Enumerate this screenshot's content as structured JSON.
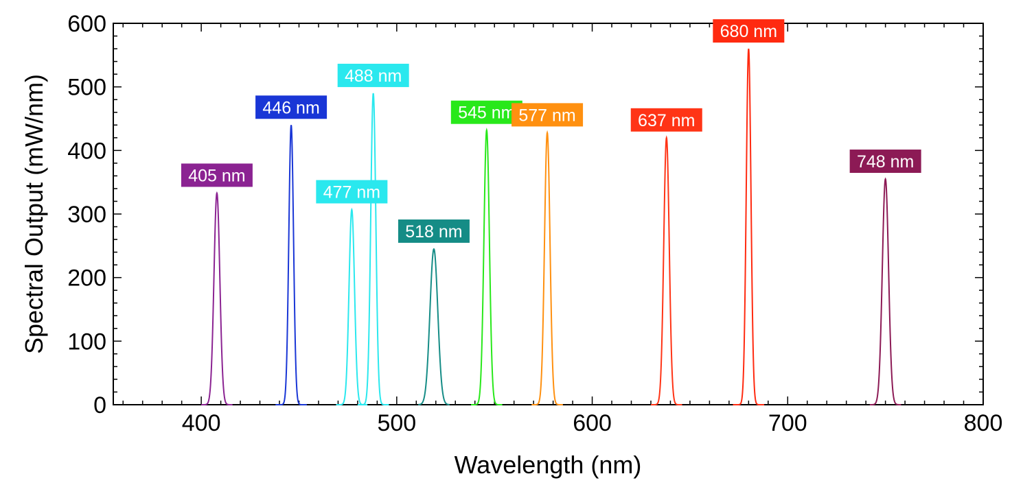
{
  "chart_data": {
    "type": "line",
    "title": "",
    "xlabel": "Wavelength (nm)",
    "ylabel": "Spectral Output (mW/nm)",
    "xlim": [
      355,
      800
    ],
    "ylim": [
      0,
      600
    ],
    "xticks": [
      400,
      500,
      600,
      700,
      800
    ],
    "yticks": [
      0,
      100,
      200,
      300,
      400,
      500,
      600
    ],
    "grid": false,
    "series": [
      {
        "label": "405 nm",
        "peak_x": 408,
        "peak_y": 333,
        "width": 1.5,
        "color": "#8b2392"
      },
      {
        "label": "446 nm",
        "peak_x": 446,
        "peak_y": 440,
        "width": 1.2,
        "color": "#1936d6"
      },
      {
        "label": "477 nm",
        "peak_x": 477,
        "peak_y": 307,
        "width": 1.4,
        "color": "#2ae8ee"
      },
      {
        "label": "488 nm",
        "peak_x": 488,
        "peak_y": 490,
        "width": 1.3,
        "color": "#2ae8ee"
      },
      {
        "label": "518 nm",
        "peak_x": 519,
        "peak_y": 245,
        "width": 2.0,
        "color": "#158c86"
      },
      {
        "label": "545 nm",
        "peak_x": 546,
        "peak_y": 432,
        "width": 1.4,
        "color": "#28e81a"
      },
      {
        "label": "577 nm",
        "peak_x": 577,
        "peak_y": 428,
        "width": 1.4,
        "color": "#ff9010"
      },
      {
        "label": "637 nm",
        "peak_x": 638,
        "peak_y": 420,
        "width": 1.4,
        "color": "#ff3416"
      },
      {
        "label": "680 nm",
        "peak_x": 680,
        "peak_y": 560,
        "width": 1.2,
        "color": "#ff2a10"
      },
      {
        "label": "748 nm",
        "peak_x": 750,
        "peak_y": 355,
        "width": 1.6,
        "color": "#8c1a55"
      }
    ]
  }
}
